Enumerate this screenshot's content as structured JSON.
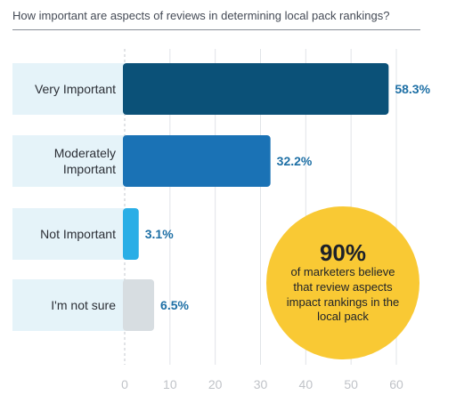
{
  "chart_data": {
    "type": "bar",
    "orientation": "horizontal",
    "title": "How important are aspects of reviews in determining local pack rankings?",
    "categories": [
      "Very Important",
      "Moderately Important",
      "Not Important",
      "I'm not sure"
    ],
    "values": [
      58.3,
      32.2,
      3.1,
      6.5
    ],
    "value_labels": [
      "58.3%",
      "32.2%",
      "3.1%",
      "6.5%"
    ],
    "xlim": [
      0,
      60
    ],
    "x_ticks": [
      0,
      10,
      20,
      30,
      40,
      50,
      60
    ],
    "grid": true,
    "colors": [
      "#0b5178",
      "#1a72b5",
      "#2aaee6",
      "#d7dde1"
    ],
    "label_band_color": "#e5f3f9"
  },
  "callout": {
    "big": "90%",
    "text": "of marketers believe that review aspects impact rankings in the local pack",
    "color": "#f9c934"
  }
}
